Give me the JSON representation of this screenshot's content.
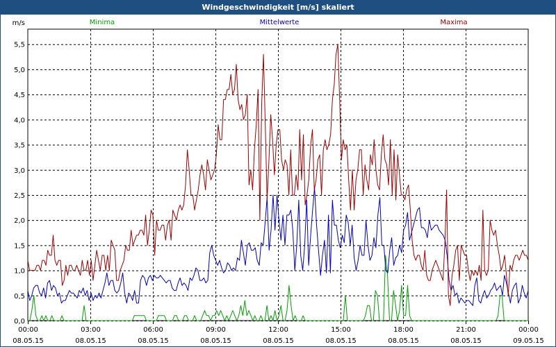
{
  "window": {
    "title": "Windgeschwindigkeit [m/s] skaliert"
  },
  "chart_data": {
    "type": "line",
    "title": "Windgeschwindigkeit [m/s] skaliert",
    "ylabel": "m/s",
    "ylim": [
      0,
      5.8
    ],
    "yticks": [
      0.0,
      0.5,
      1.0,
      1.5,
      2.0,
      2.5,
      3.0,
      3.5,
      4.0,
      4.5,
      5.0,
      5.5
    ],
    "ytick_labels": [
      "0,0",
      "0,5",
      "1,0",
      "1,5",
      "2,0",
      "2,5",
      "3,0",
      "3,5",
      "4,0",
      "4,5",
      "5,0",
      "5,5"
    ],
    "x_tick_times": [
      "00:00",
      "03:00",
      "06:00",
      "09:00",
      "12:00",
      "15:00",
      "18:00",
      "21:00",
      "00:00"
    ],
    "x_tick_dates": [
      "08.05.15",
      "08.05.15",
      "08.05.15",
      "08.05.15",
      "08.05.15",
      "08.05.15",
      "08.05.15",
      "08.05.15",
      "09.05.15"
    ],
    "x_start": "08.05.15 00:00",
    "x_end": "09.05.15 00:00",
    "sample_interval_minutes": 10,
    "grid": true,
    "legend_position": "top",
    "colors": {
      "Minima": "#00a000",
      "Mittelwerte": "#0000c0",
      "Maxima": "#a00000"
    },
    "series": [
      {
        "name": "Minima",
        "color": "#00a000",
        "values": [
          0,
          0,
          0.2,
          0.5,
          0.1,
          0,
          0,
          0.1,
          0,
          0.1,
          0,
          0,
          0.1,
          0,
          0,
          0,
          0,
          0.1,
          0,
          0,
          0,
          0,
          0,
          0,
          0,
          0,
          0,
          0,
          0.3,
          0,
          0,
          0,
          0,
          0,
          0,
          0,
          0,
          0,
          0,
          0,
          0,
          0,
          0,
          0,
          0,
          0,
          0,
          0,
          0,
          0,
          0,
          0,
          0,
          0.1,
          0.1,
          0.1,
          0.1,
          0.1,
          0.1,
          0,
          0,
          0,
          0,
          0,
          0,
          0.1,
          0.1,
          0.1,
          0.1,
          0,
          0,
          0,
          0,
          0.1,
          0.1,
          0,
          0,
          0,
          0.1,
          0.1,
          0,
          0,
          0,
          0.1,
          0,
          0,
          0,
          0.1,
          0.2,
          0.1,
          0.1,
          0,
          0.1,
          0.1,
          0.2,
          0.1,
          0.2,
          0.1,
          0,
          0.1,
          0,
          0.1,
          0.2,
          0.1,
          0,
          0.1,
          0.3,
          0.1,
          0.4,
          0.1,
          0.2,
          0.1,
          0,
          0.1,
          0,
          0,
          0.1,
          0,
          0,
          0.3,
          0,
          0.1,
          0,
          0.2,
          0,
          0.1,
          0.3,
          0,
          0,
          0.2,
          0.7,
          0.3,
          0,
          0.1,
          0,
          0,
          0,
          0.1,
          0,
          0,
          0,
          0,
          0,
          0,
          0,
          0,
          0,
          0,
          0,
          0,
          0,
          0,
          0,
          0,
          0,
          0,
          0,
          0,
          0.5,
          0,
          0,
          0,
          0,
          0,
          0,
          0,
          0,
          0,
          0.1,
          0.3,
          0.3,
          0,
          0,
          0.6,
          0.5,
          0,
          0,
          0,
          1.3,
          0.9,
          0,
          0,
          0.6,
          0.3,
          0,
          0.2,
          0.7,
          0.1,
          0.1,
          0.7,
          0.1,
          0,
          0,
          0,
          0,
          0,
          0,
          0,
          0,
          0,
          0,
          0,
          0,
          0,
          0,
          0,
          0,
          0,
          0,
          0,
          0,
          0,
          0,
          0,
          0,
          0,
          0,
          0,
          0,
          0,
          0,
          0,
          0,
          0,
          0,
          0,
          0,
          0,
          0,
          0,
          0,
          0,
          0,
          0,
          0.1,
          0.5,
          0.5,
          0,
          0,
          0,
          0,
          0,
          0,
          0,
          0,
          0,
          0,
          0,
          0,
          0
        ]
      },
      {
        "name": "Mittelwerte",
        "color": "#0000c0",
        "values": [
          0.6,
          0.4,
          0.5,
          0.65,
          0.7,
          0.7,
          0.55,
          0.5,
          0.65,
          0.45,
          0.75,
          0.8,
          0.6,
          0.7,
          0.65,
          0.5,
          0.55,
          0.35,
          0.4,
          0.4,
          0.5,
          0.6,
          0.55,
          0.55,
          0.5,
          0.45,
          0.6,
          0.55,
          0.65,
          0.5,
          0.6,
          0.4,
          0.55,
          0.4,
          0.5,
          0.45,
          0.55,
          0.45,
          0.6,
          0.75,
          0.95,
          0.7,
          0.8,
          0.8,
          0.6,
          0.55,
          0.6,
          0.75,
          0.95,
          0.55,
          0.35,
          0.55,
          0.5,
          0.4,
          0.6,
          0.35,
          0.35,
          0.8,
          0.9,
          0.85,
          0.7,
          0.85,
          0.9,
          0.8,
          0.9,
          0.85,
          0.85,
          0.9,
          0.85,
          0.8,
          0.75,
          0.8,
          0.8,
          0.65,
          0.6,
          0.6,
          0.75,
          0.85,
          0.7,
          0.75,
          0.7,
          0.6,
          0.85,
          0.8,
          0.9,
          1.05,
          1.0,
          0.8,
          0.8,
          0.85,
          0.75,
          0.8,
          1.35,
          1.5,
          1.3,
          1.2,
          1.1,
          1.2,
          1.05,
          0.95,
          1.0,
          1.15,
          1.1,
          1.0,
          1.05,
          1.0,
          1.25,
          1.2,
          1.6,
          1.35,
          1.1,
          1.5,
          1.55,
          1.4,
          1.4,
          1.45,
          1.2,
          1.1,
          1.55,
          1.5,
          1.95,
          2.45,
          1.4,
          1.8,
          2.5,
          1.8,
          2.5,
          2.0,
          1.6,
          2.1,
          1.5,
          2.1,
          2.1,
          2.2,
          1.8,
          1.0,
          1.5,
          2.4,
          1.3,
          1.0,
          1.5,
          2.4,
          1.1,
          1.7,
          2.2,
          2.65,
          1.9,
          1.4,
          0.9,
          1.3,
          1.6,
          0.95,
          2.1,
          0.95,
          2.4,
          1.9,
          1.9,
          1.6,
          1.45,
          1.7,
          1.55,
          2.1,
          1.95,
          1.5,
          1.9,
          1.25,
          1.0,
          1.2,
          1.5,
          1.3,
          1.3,
          2.0,
          1.5,
          1.2,
          1.3,
          1.65,
          1.45,
          2.1,
          2.45,
          1.5,
          1.5,
          1.0,
          0.95,
          1.4,
          1.65,
          1.1,
          1.25,
          1.3,
          1.5,
          1.35,
          1.8,
          1.9,
          2.15,
          1.6,
          1.75,
          1.9,
          2.05,
          2.2,
          2.25,
          1.85,
          1.85,
          1.8,
          1.65,
          2.0,
          1.8,
          1.85,
          1.9,
          1.9,
          1.8,
          1.75,
          1.7,
          1.6,
          1.3,
          0.8,
          0.6,
          0.7,
          0.5,
          0.55,
          0.35,
          0.45,
          0.4,
          0.35,
          0.4,
          0.4,
          0.35,
          0.3,
          0.7,
          0.85,
          0.4,
          0.35,
          0.5,
          0.6,
          0.45,
          0.5,
          0.6,
          0.65,
          0.75,
          0.6,
          0.65,
          0.7,
          0.5,
          0.9,
          0.75,
          0.55,
          0.35,
          0.6,
          0.7,
          0.75,
          0.35,
          0.45,
          0.7,
          0.55,
          0.45,
          0.6
        ]
      },
      {
        "name": "Maxima",
        "color": "#a00000",
        "values": [
          1.2,
          1.0,
          1.0,
          1.0,
          1.0,
          1.1,
          1.1,
          1.0,
          1.2,
          1.2,
          1.1,
          1.4,
          1.3,
          1.3,
          1.7,
          1.2,
          1.1,
          1.2,
          1.2,
          0.7,
          0.8,
          1.1,
          0.9,
          1.1,
          1.1,
          1.0,
          1.0,
          1.1,
          1.0,
          0.9,
          1.2,
          1.0,
          1.0,
          1.2,
          0.9,
          1.2,
          0.8,
          1.1,
          1.4,
          1.2,
          1.0,
          1.3,
          1.3,
          1.0,
          1.3,
          1.0,
          1.6,
          1.5,
          1.4,
          0.8,
          0.8,
          1.0,
          1.1,
          1.2,
          1.5,
          1.4,
          1.4,
          1.8,
          1.5,
          1.6,
          1.7,
          1.7,
          1.8,
          1.8,
          1.7,
          2.1,
          1.5,
          1.8,
          2.2,
          2.1,
          1.3,
          2.0,
          1.8,
          1.8,
          1.9,
          1.9,
          1.6,
          1.9,
          2.0,
          1.6,
          2.2,
          2.1,
          2.0,
          2.2,
          2.3,
          2.2,
          2.3,
          2.7,
          3.4,
          3.0,
          2.5,
          2.5,
          2.2,
          2.4,
          2.6,
          2.9,
          3.1,
          2.9,
          2.6,
          3.2,
          3.0,
          2.8,
          2.9,
          3.0,
          3.3,
          3.9,
          3.6,
          3.6,
          4.4,
          4.4,
          4.6,
          4.6,
          4.9,
          4.5,
          4.6,
          5.1,
          4.4,
          4.2,
          4.3,
          4.0,
          4.1,
          4.5,
          2.7,
          3.0,
          2.6,
          3.4,
          3.9,
          4.6,
          2.0,
          4.3,
          5.3,
          3.9,
          2.4,
          3.2,
          4.1,
          3.6,
          2.9,
          3.5,
          3.8,
          3.8,
          3.2,
          3.0,
          3.2,
          3.1,
          2.5,
          3.4,
          2.5,
          2.5,
          2.9,
          2.6,
          3.8,
          2.8,
          3.7,
          2.3,
          2.5,
          2.8,
          3.5,
          3.8,
          2.6,
          2.8,
          3.2,
          3.3,
          2.5,
          3.4,
          3.6,
          3.4,
          3.5,
          3.7,
          4.4,
          4.7,
          5.3,
          5.5,
          4.4,
          3.2,
          3.6,
          3.4,
          3.5,
          2.8,
          2.2,
          3.0,
          2.2,
          2.8,
          3.0,
          3.4,
          3.4,
          2.5,
          3.1,
          2.8,
          2.6,
          3.3,
          3.1,
          3.6,
          3.0,
          2.7,
          2.6,
          3.3,
          3.7,
          3.2,
          3.1,
          2.7,
          3.6,
          2.5,
          3.4,
          2.4,
          3.3,
          2.9,
          2.5,
          2.5,
          2.4,
          2.6,
          2.7,
          2.2,
          1.6,
          1.3,
          1.2,
          1.3,
          1.3,
          1.1,
          1.0,
          1.4,
          0.9,
          0.8,
          0.8,
          1.0,
          1.1,
          1.2,
          1.1,
          1.0,
          0.9,
          0.8,
          1.5,
          2.6,
          0.5,
          0.3,
          0.9,
          1.1,
          1.4,
          1.5,
          0.8,
          1.5,
          1.4,
          1.3,
          1.3,
          1.0,
          0.8,
          1.0,
          0.9,
          1.0,
          0.9,
          1.1,
          0.8,
          2.2,
          1.0,
          0.9,
          1.0,
          2.0,
          1.8,
          1.7,
          1.8,
          1.5,
          1.3,
          1.0,
          1.1,
          1.3,
          0.9,
          0.5,
          1.1,
          1.0,
          1.2,
          1.3,
          1.3,
          1.2,
          1.3,
          1.4,
          1.3,
          1.3,
          1.2
        ]
      }
    ]
  }
}
